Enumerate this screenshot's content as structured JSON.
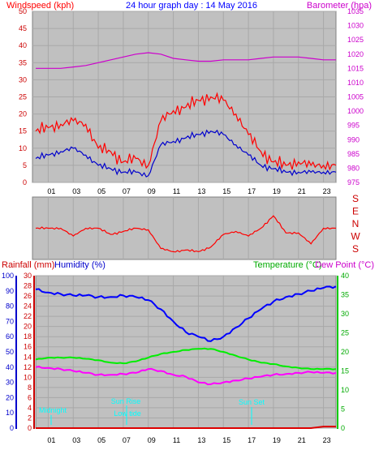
{
  "header": {
    "left": "Windspeed (kph)",
    "center": "24 hour graph day : 14 May 2016",
    "right": "Barometer (hpa)"
  },
  "compass_labels": [
    "S",
    "E",
    "N",
    "W",
    "S"
  ],
  "x_ticks": [
    "01",
    "03",
    "05",
    "07",
    "09",
    "11",
    "13",
    "15",
    "17",
    "19",
    "21",
    "23"
  ],
  "bottom_header": {
    "rain": "Rainfall (mm)",
    "humidity": "Humidity (%)",
    "temperature": "Temperature (°C)",
    "dewpoint": "Dew Point (°C)"
  },
  "annotations": {
    "midnight": "Midnight",
    "sunrise": "Sun Rise",
    "lowtide": "Low tide",
    "sunset": "Sun Set"
  },
  "colors": {
    "wind": "#ff0000",
    "gust_avg": "#0000cc",
    "barometer": "#cc00cc",
    "humidity": "#0000ff",
    "temperature": "#00ee00",
    "dewpoint": "#ff00ff",
    "rain": "#dd0000",
    "plot_bg": "#c0c0c0",
    "annotation": "#00ffff"
  },
  "chart_data": [
    {
      "type": "line",
      "ylim_left": [
        0,
        50
      ],
      "ylim_right": [
        975,
        1035
      ],
      "yticks_left": [
        "0",
        "5",
        "10",
        "15",
        "20",
        "25",
        "30",
        "35",
        "40",
        "45",
        "50"
      ],
      "yticks_right": [
        "975",
        "980",
        "985",
        "990",
        "995",
        "1000",
        "1005",
        "1010",
        "1015",
        "1020",
        "1025",
        "1030",
        "1035"
      ],
      "x_hours": [
        0,
        1,
        2,
        3,
        4,
        5,
        6,
        7,
        8,
        9,
        10,
        11,
        12,
        13,
        14,
        15,
        16,
        17,
        18,
        19,
        20,
        21,
        22,
        23,
        24
      ],
      "series": [
        {
          "values": [
            15,
            16,
            17,
            18,
            17,
            10,
            9,
            6,
            7,
            5,
            18,
            21,
            22,
            24,
            25,
            24,
            20,
            14,
            9,
            6,
            5,
            6,
            5,
            5,
            5
          ]
        },
        {
          "values": [
            7,
            8,
            9,
            10,
            8,
            5,
            4,
            3,
            3,
            2,
            11,
            12,
            13,
            14,
            15,
            14,
            11,
            8,
            5,
            4,
            3,
            3,
            3,
            3,
            3
          ]
        },
        {
          "values": [
            1015,
            1015,
            1015,
            1015.5,
            1016,
            1017,
            1018,
            1019,
            1020,
            1020.5,
            1020,
            1018.5,
            1018,
            1017.5,
            1017.5,
            1018,
            1018,
            1018,
            1018.5,
            1019,
            1019,
            1019,
            1018.5,
            1018,
            1018
          ]
        }
      ]
    },
    {
      "type": "line",
      "series": [
        {
          "values": [
            2,
            2,
            2,
            1.5,
            2,
            2,
            1.6,
            1.8,
            2,
            1.9,
            0.7,
            0.5,
            0.6,
            0.5,
            0.8,
            1.6,
            1.8,
            1.5,
            2,
            2.8,
            1.7,
            1.7,
            1,
            2,
            2
          ]
        }
      ]
    },
    {
      "type": "line",
      "ylim_rain": [
        0,
        30
      ],
      "ylim_humidity": [
        0,
        100
      ],
      "ylim_temp": [
        0,
        40
      ],
      "yticks_rain": [
        "0",
        "2",
        "4",
        "6",
        "8",
        "10",
        "12",
        "14",
        "16",
        "18",
        "20",
        "22",
        "24",
        "26",
        "28",
        "30"
      ],
      "yticks_humidity": [
        "0",
        "10",
        "20",
        "30",
        "40",
        "50",
        "60",
        "70",
        "80",
        "90",
        "100"
      ],
      "yticks_temp": [
        "0",
        "5",
        "10",
        "15",
        "20",
        "25",
        "30",
        "35",
        "40"
      ],
      "x_hours": [
        0,
        1,
        2,
        3,
        4,
        5,
        6,
        7,
        8,
        9,
        10,
        11,
        12,
        13,
        14,
        15,
        16,
        17,
        18,
        19,
        20,
        21,
        22,
        23,
        24
      ],
      "series": [
        {
          "values": [
            91,
            89,
            88,
            87,
            87,
            86,
            86,
            87,
            86,
            84,
            78,
            70,
            63,
            60,
            57,
            60,
            66,
            72,
            78,
            83,
            86,
            88,
            90,
            92,
            93
          ]
        },
        {
          "values": [
            18,
            18.5,
            18.5,
            18.5,
            18.2,
            17.8,
            17.2,
            17,
            17.5,
            18.5,
            19.5,
            20,
            20.5,
            20.8,
            20.8,
            20,
            19,
            18,
            17.2,
            16.8,
            16.2,
            15.8,
            15.5,
            15.5,
            15.5
          ]
        },
        {
          "values": [
            16,
            15.8,
            15.5,
            15,
            14.5,
            14,
            14,
            14.2,
            14.5,
            15.5,
            15,
            14,
            13.5,
            12,
            11.5,
            12,
            12.5,
            13,
            13.5,
            14,
            14.2,
            14.5,
            14.7,
            14.5,
            14.5
          ]
        },
        {
          "values": [
            0,
            0,
            0,
            0,
            0,
            0,
            0,
            0,
            0,
            0,
            0,
            0,
            0,
            0,
            0,
            0,
            0,
            0,
            0,
            0,
            0,
            0,
            0,
            0.3,
            0.3
          ]
        }
      ]
    }
  ]
}
